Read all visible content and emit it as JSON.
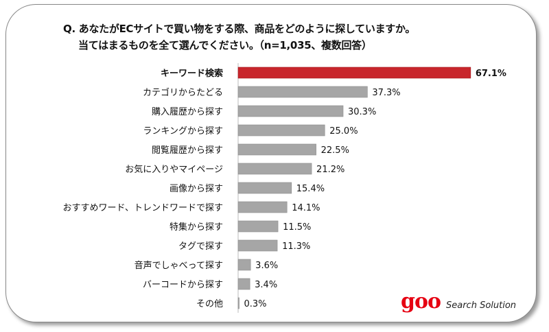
{
  "chart_data": {
    "type": "bar",
    "title": "Q. あなたがECサイトで買い物をする際、商品をどのように探していますか。",
    "subtitle": "当てはまるものを全て選んでください。（n=1,035、複数回答）",
    "categories": [
      "キーワード検索",
      "カテゴリからたどる",
      "購入履歴から探す",
      "ランキングから探す",
      "閲覧履歴から探す",
      "お気に入りやマイページ",
      "画像から探す",
      "おすすめワード、トレンドワードで探す",
      "特集から探す",
      "タグで探す",
      "音声でしゃべって探す",
      "バーコードから探す",
      "その他"
    ],
    "values": [
      67.1,
      37.3,
      30.3,
      25.0,
      22.5,
      21.2,
      15.4,
      14.1,
      11.5,
      11.3,
      3.6,
      3.4,
      0.3
    ],
    "unit": "%",
    "highlight_index": 0,
    "colors": {
      "highlight": "#c8262c",
      "default": "#a6a6a6"
    },
    "xlim": [
      0,
      100
    ]
  },
  "logo": {
    "brand": "goo",
    "tagline": "Search Solution"
  }
}
